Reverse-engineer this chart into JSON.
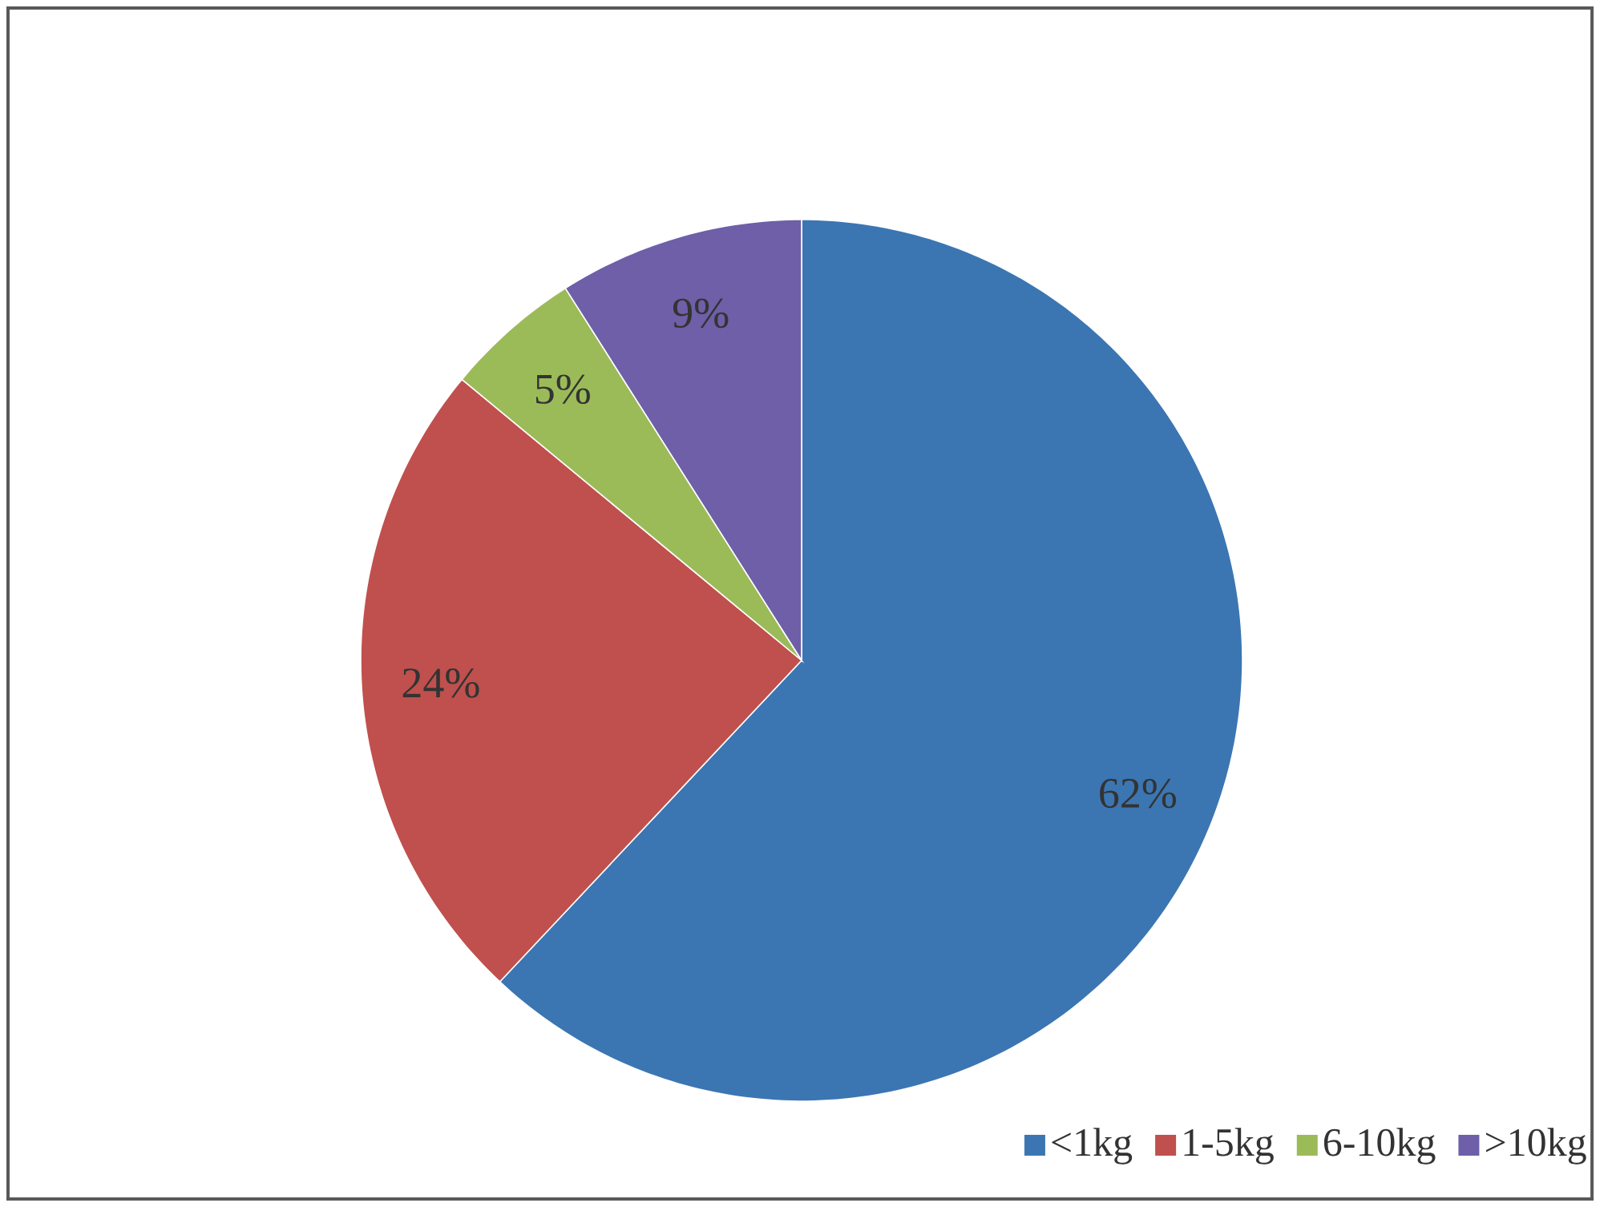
{
  "chart_data": {
    "type": "pie",
    "categories": [
      "<1kg",
      "1-5kg",
      "6-10kg",
      ">10kg"
    ],
    "values": [
      62,
      24,
      5,
      9
    ],
    "colors": [
      "#3b76b2",
      "#c0504d",
      "#9bbb59",
      "#6e5fa8"
    ],
    "value_labels": [
      "62%",
      "24%",
      "5%",
      "9%"
    ],
    "legend": "bottom right"
  }
}
